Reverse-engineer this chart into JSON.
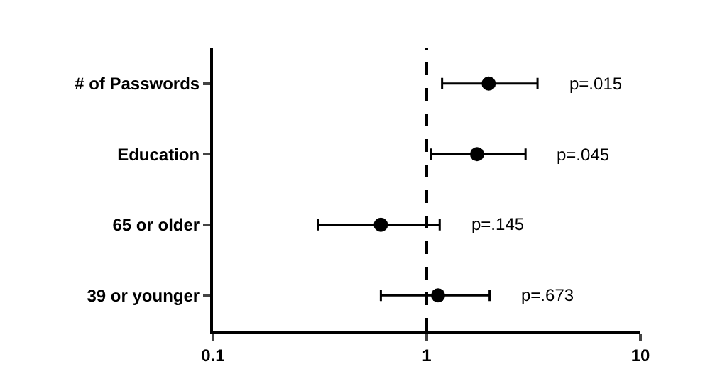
{
  "chart_data": {
    "type": "scatter",
    "orientation": "horizontal",
    "categories": [
      "# of Passwords",
      "Education",
      "65 or older",
      "39 or younger"
    ],
    "values": [
      1.95,
      1.72,
      0.61,
      1.13
    ],
    "errors": [
      [
        1.18,
        3.3
      ],
      [
        1.05,
        2.9
      ],
      [
        0.31,
        1.15
      ],
      [
        0.61,
        1.97
      ]
    ],
    "color": "#000000",
    "marker": "circle",
    "log": "x",
    "xlim": [
      0.1,
      10
    ],
    "xticks": [
      0.1,
      1,
      10
    ],
    "grid": false,
    "ref_lines": [
      {
        "axis": "x",
        "value": 1,
        "line_style": "dashed",
        "color": "#000000"
      }
    ],
    "annotations": [
      "p=.015",
      "p=.045",
      "p=.145",
      "p=.673"
    ]
  }
}
